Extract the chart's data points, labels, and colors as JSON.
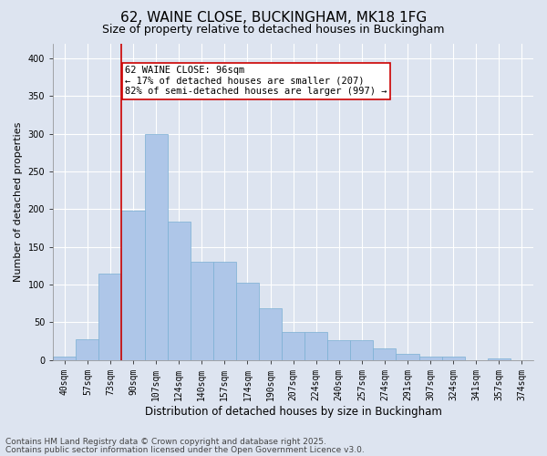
{
  "title_line1": "62, WAINE CLOSE, BUCKINGHAM, MK18 1FG",
  "title_line2": "Size of property relative to detached houses in Buckingham",
  "xlabel": "Distribution of detached houses by size in Buckingham",
  "ylabel": "Number of detached properties",
  "categories": [
    "40sqm",
    "57sqm",
    "73sqm",
    "90sqm",
    "107sqm",
    "124sqm",
    "140sqm",
    "157sqm",
    "174sqm",
    "190sqm",
    "207sqm",
    "224sqm",
    "240sqm",
    "257sqm",
    "274sqm",
    "291sqm",
    "307sqm",
    "324sqm",
    "341sqm",
    "357sqm",
    "374sqm"
  ],
  "values": [
    5,
    27,
    115,
    198,
    300,
    183,
    130,
    130,
    102,
    68,
    37,
    37,
    26,
    26,
    15,
    8,
    4,
    4,
    0,
    2,
    0
  ],
  "bar_color": "#aec6e8",
  "bar_edgecolor": "#7aafd4",
  "vline_color": "#cc0000",
  "annotation_text": "62 WAINE CLOSE: 96sqm\n← 17% of detached houses are smaller (207)\n82% of semi-detached houses are larger (997) →",
  "annotation_box_color": "#cc0000",
  "ylim": [
    0,
    420
  ],
  "yticks": [
    0,
    50,
    100,
    150,
    200,
    250,
    300,
    350,
    400
  ],
  "background_color": "#dde4f0",
  "plot_bg_color": "#dde4f0",
  "footer_line1": "Contains HM Land Registry data © Crown copyright and database right 2025.",
  "footer_line2": "Contains public sector information licensed under the Open Government Licence v3.0.",
  "title_fontsize": 11,
  "subtitle_fontsize": 9,
  "annotation_fontsize": 7.5,
  "tick_fontsize": 7,
  "xlabel_fontsize": 8.5,
  "ylabel_fontsize": 8,
  "footer_fontsize": 6.5
}
